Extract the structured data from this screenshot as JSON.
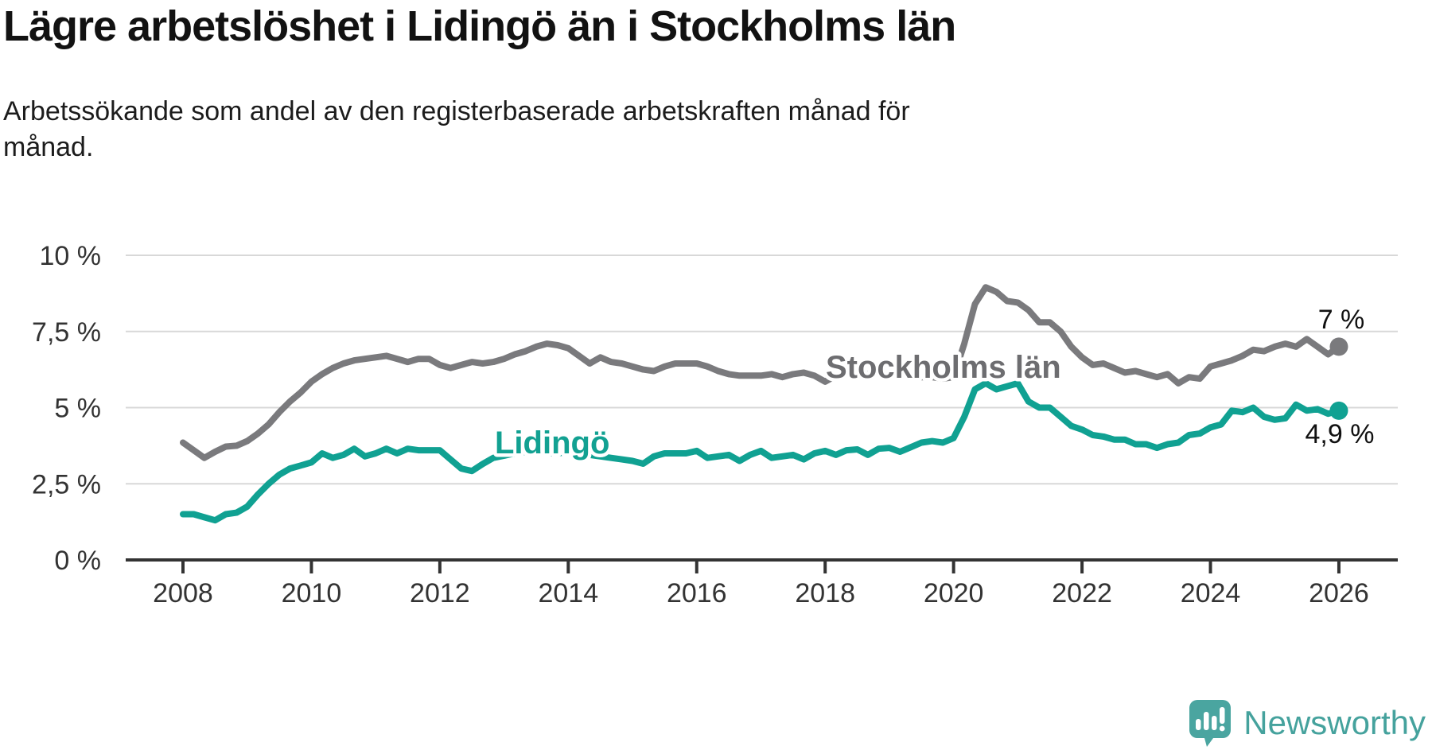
{
  "title": "Lägre arbetslöshet i Lidingö än i Stockholms län",
  "subtitle_lines": [
    "Arbetssökande som andel av den registerbaserade arbetskraften månad för",
    "månad."
  ],
  "footer": {
    "brand": "Newsworthy",
    "logo_icon": "newsworthy-speech-bubble-chart-icon"
  },
  "colors": {
    "title_text": "#121212",
    "subtitle_text": "#1c1c1c",
    "grid": "#d8d8d8",
    "axis": "#333333",
    "tick_text": "#333333",
    "end_label_text": "#111111",
    "brand_teal": "#45a29d"
  },
  "chart_data": {
    "type": "line",
    "title": "Lägre arbetslöshet i Lidingö än i Stockholms län",
    "x_axis": {
      "start_year": 2008.0,
      "end_year": 2026.0,
      "step_months": 2,
      "ticks": [
        2008,
        2010,
        2012,
        2014,
        2016,
        2018,
        2020,
        2022,
        2024,
        2026
      ]
    },
    "y_axis": {
      "unit": "%",
      "range": [
        0,
        10
      ],
      "tick_values": [
        0,
        2.5,
        5,
        7.5,
        10
      ],
      "tick_labels": [
        "0 %",
        "2,5 %",
        "5 %",
        "7,5 %",
        "10 %"
      ],
      "grid": true
    },
    "legend_position": "inline-labels",
    "series": [
      {
        "name": "Stockholms län",
        "color": "#7a7a7d",
        "label_color": "#6d6d70",
        "end_label": "7 %",
        "end_value": 7.0,
        "values": [
          3.85,
          3.6,
          3.35,
          3.55,
          3.72,
          3.75,
          3.9,
          4.15,
          4.45,
          4.85,
          5.2,
          5.5,
          5.85,
          6.1,
          6.3,
          6.45,
          6.55,
          6.6,
          6.65,
          6.7,
          6.6,
          6.5,
          6.6,
          6.6,
          6.4,
          6.3,
          6.4,
          6.5,
          6.45,
          6.5,
          6.6,
          6.75,
          6.85,
          7.0,
          7.1,
          7.05,
          6.95,
          6.7,
          6.45,
          6.65,
          6.5,
          6.45,
          6.35,
          6.25,
          6.2,
          6.35,
          6.45,
          6.45,
          6.45,
          6.35,
          6.2,
          6.1,
          6.05,
          6.05,
          6.05,
          6.1,
          6.0,
          6.1,
          6.15,
          6.05,
          5.85,
          6.05,
          6.1,
          6.1,
          6.1,
          6.1,
          6.1,
          6.05,
          6.05,
          6.0,
          6.0,
          5.95,
          6.0,
          7.1,
          8.4,
          8.95,
          8.8,
          8.5,
          8.45,
          8.2,
          7.8,
          7.8,
          7.5,
          7.0,
          6.65,
          6.4,
          6.45,
          6.3,
          6.15,
          6.2,
          6.1,
          6.0,
          6.1,
          5.8,
          6.0,
          5.95,
          6.35,
          6.45,
          6.55,
          6.7,
          6.9,
          6.85,
          7.0,
          7.1,
          7.0,
          7.25,
          7.0,
          6.75,
          7.0
        ]
      },
      {
        "name": "Lidingö",
        "color": "#10a192",
        "label_color": "#12a192",
        "end_label": "4,9 %",
        "end_value": 4.9,
        "values": [
          1.5,
          1.5,
          1.4,
          1.3,
          1.5,
          1.55,
          1.75,
          2.15,
          2.5,
          2.8,
          3.0,
          3.1,
          3.2,
          3.5,
          3.35,
          3.45,
          3.65,
          3.4,
          3.5,
          3.65,
          3.5,
          3.65,
          3.6,
          3.6,
          3.6,
          3.3,
          3.0,
          2.92,
          3.15,
          3.35,
          3.42,
          3.5,
          3.55,
          3.55,
          3.5,
          3.5,
          3.55,
          3.5,
          3.45,
          3.4,
          3.35,
          3.3,
          3.25,
          3.16,
          3.4,
          3.5,
          3.5,
          3.5,
          3.58,
          3.35,
          3.4,
          3.45,
          3.25,
          3.45,
          3.58,
          3.35,
          3.4,
          3.45,
          3.3,
          3.5,
          3.58,
          3.45,
          3.6,
          3.63,
          3.45,
          3.65,
          3.68,
          3.55,
          3.7,
          3.85,
          3.9,
          3.85,
          4.0,
          4.7,
          5.6,
          5.8,
          5.6,
          5.7,
          5.8,
          5.2,
          5.0,
          5.0,
          4.7,
          4.4,
          4.28,
          4.1,
          4.05,
          3.95,
          3.95,
          3.8,
          3.8,
          3.68,
          3.8,
          3.85,
          4.1,
          4.15,
          4.35,
          4.45,
          4.9,
          4.85,
          5.0,
          4.7,
          4.6,
          4.65,
          5.1,
          4.9,
          4.95,
          4.8,
          4.9
        ]
      }
    ]
  }
}
